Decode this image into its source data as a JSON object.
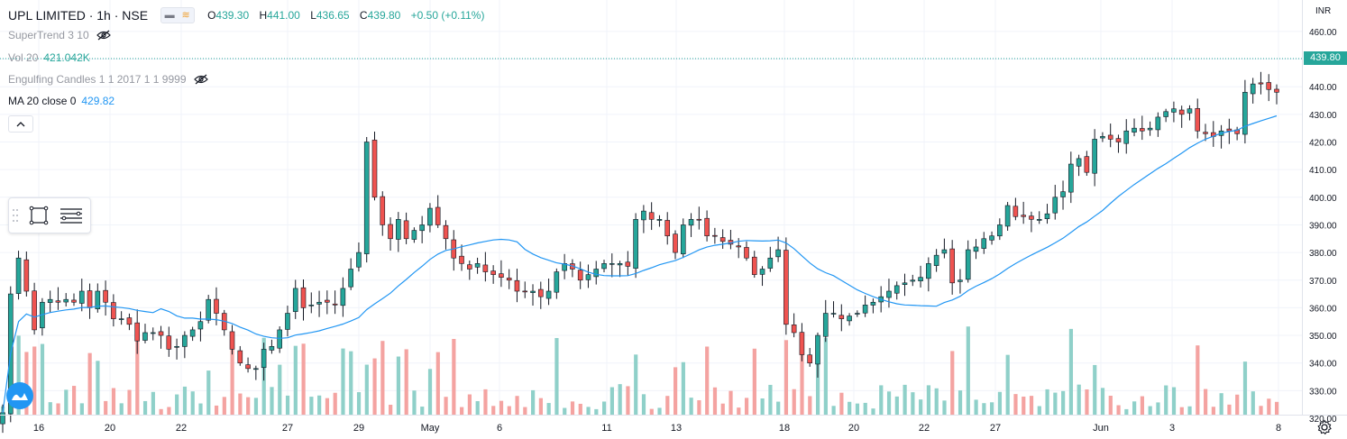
{
  "header": {
    "symbol": "UPL LIMITED · 1h · NSE",
    "open_label": "O",
    "open": "439.30",
    "high_label": "H",
    "high": "441.00",
    "low_label": "L",
    "low": "436.65",
    "close_label": "C",
    "close": "439.80",
    "change": "+0.50 (+0.11%)"
  },
  "indicators": [
    {
      "name": "SuperTrend 3 10",
      "value": "",
      "hidden": true
    },
    {
      "name": "Vol 20",
      "value": "421.042K",
      "hidden": false
    },
    {
      "name": "Engulfing Candles 1 1 2017 1 1 9999",
      "value": "",
      "hidden": true
    },
    {
      "name": "MA 20 close 0",
      "value": "429.82",
      "hidden": false
    }
  ],
  "price_axis": {
    "currency": "INR",
    "last_price_label": "439.80",
    "ticks": [
      "460.00",
      "450.00",
      "440.00",
      "430.00",
      "420.00",
      "410.00",
      "400.00",
      "390.00",
      "380.00",
      "370.00",
      "360.00",
      "350.00",
      "340.00",
      "330.00",
      "320.00"
    ]
  },
  "time_axis": {
    "ticks": [
      "16",
      "20",
      "22",
      "27",
      "29",
      "May",
      "6",
      "11",
      "13",
      "18",
      "20",
      "22",
      "27",
      "Jun",
      "3",
      "8"
    ]
  },
  "icons": {
    "eye_off": "eye-off-icon",
    "collapse": "chevron-up-icon",
    "rect_tool": "rectangle-tool-icon",
    "lines_tool": "horizontal-lines-icon",
    "logo": "tradingview-logo-icon",
    "settings": "gear-icon"
  },
  "colors": {
    "up": "#26a69a",
    "down": "#ef5350",
    "vol_up": "#8fd0c9",
    "vol_down": "#f4a3a1",
    "ma": "#2196f3",
    "grid": "#f0f3fa"
  },
  "chart_data": {
    "type": "candlestick",
    "title": "UPL LIMITED · 1h · NSE",
    "ylim": [
      310,
      461
    ],
    "x_tick_labels": [
      "16",
      "20",
      "22",
      "27",
      "29",
      "May",
      "6",
      "11",
      "13",
      "18",
      "20",
      "22",
      "27",
      "Jun",
      "3",
      "8"
    ],
    "ohlc_close": [
      322,
      365,
      378,
      366,
      352,
      362,
      363,
      362,
      363,
      362,
      366,
      360,
      366,
      362,
      356,
      356,
      354,
      348,
      351,
      351,
      350,
      345,
      346,
      350,
      352,
      355,
      363,
      358,
      352,
      345,
      340,
      338,
      338,
      345,
      346,
      352,
      358,
      367,
      360,
      361,
      362,
      362,
      361,
      367,
      374,
      380,
      420,
      400,
      390,
      385,
      392,
      385,
      388,
      390,
      396,
      390,
      385,
      378,
      376,
      374,
      376,
      373,
      372,
      371,
      370,
      366,
      366,
      366,
      364,
      366,
      373,
      376,
      374,
      370,
      372,
      374,
      376,
      376,
      376,
      375,
      392,
      395,
      392,
      392,
      386,
      380,
      390,
      392,
      392,
      386,
      386,
      384,
      383,
      382,
      378,
      372,
      374,
      378,
      381,
      354,
      351,
      343,
      340,
      350,
      358,
      358,
      356,
      357,
      358,
      361,
      362,
      364,
      366,
      368,
      369,
      370,
      371,
      376,
      379,
      381,
      369,
      370,
      381,
      382,
      385,
      386,
      390,
      397,
      393,
      393,
      392,
      392,
      394,
      400,
      402,
      412,
      414,
      409,
      421,
      422,
      421,
      420,
      424,
      425,
      424,
      425,
      429,
      431,
      432,
      430,
      432,
      424,
      423,
      422,
      424,
      424,
      423,
      438,
      441,
      441,
      439,
      438
    ],
    "ma20_close_last": "429.82",
    "volume_last": "421.042K",
    "last_close": "439.80"
  }
}
